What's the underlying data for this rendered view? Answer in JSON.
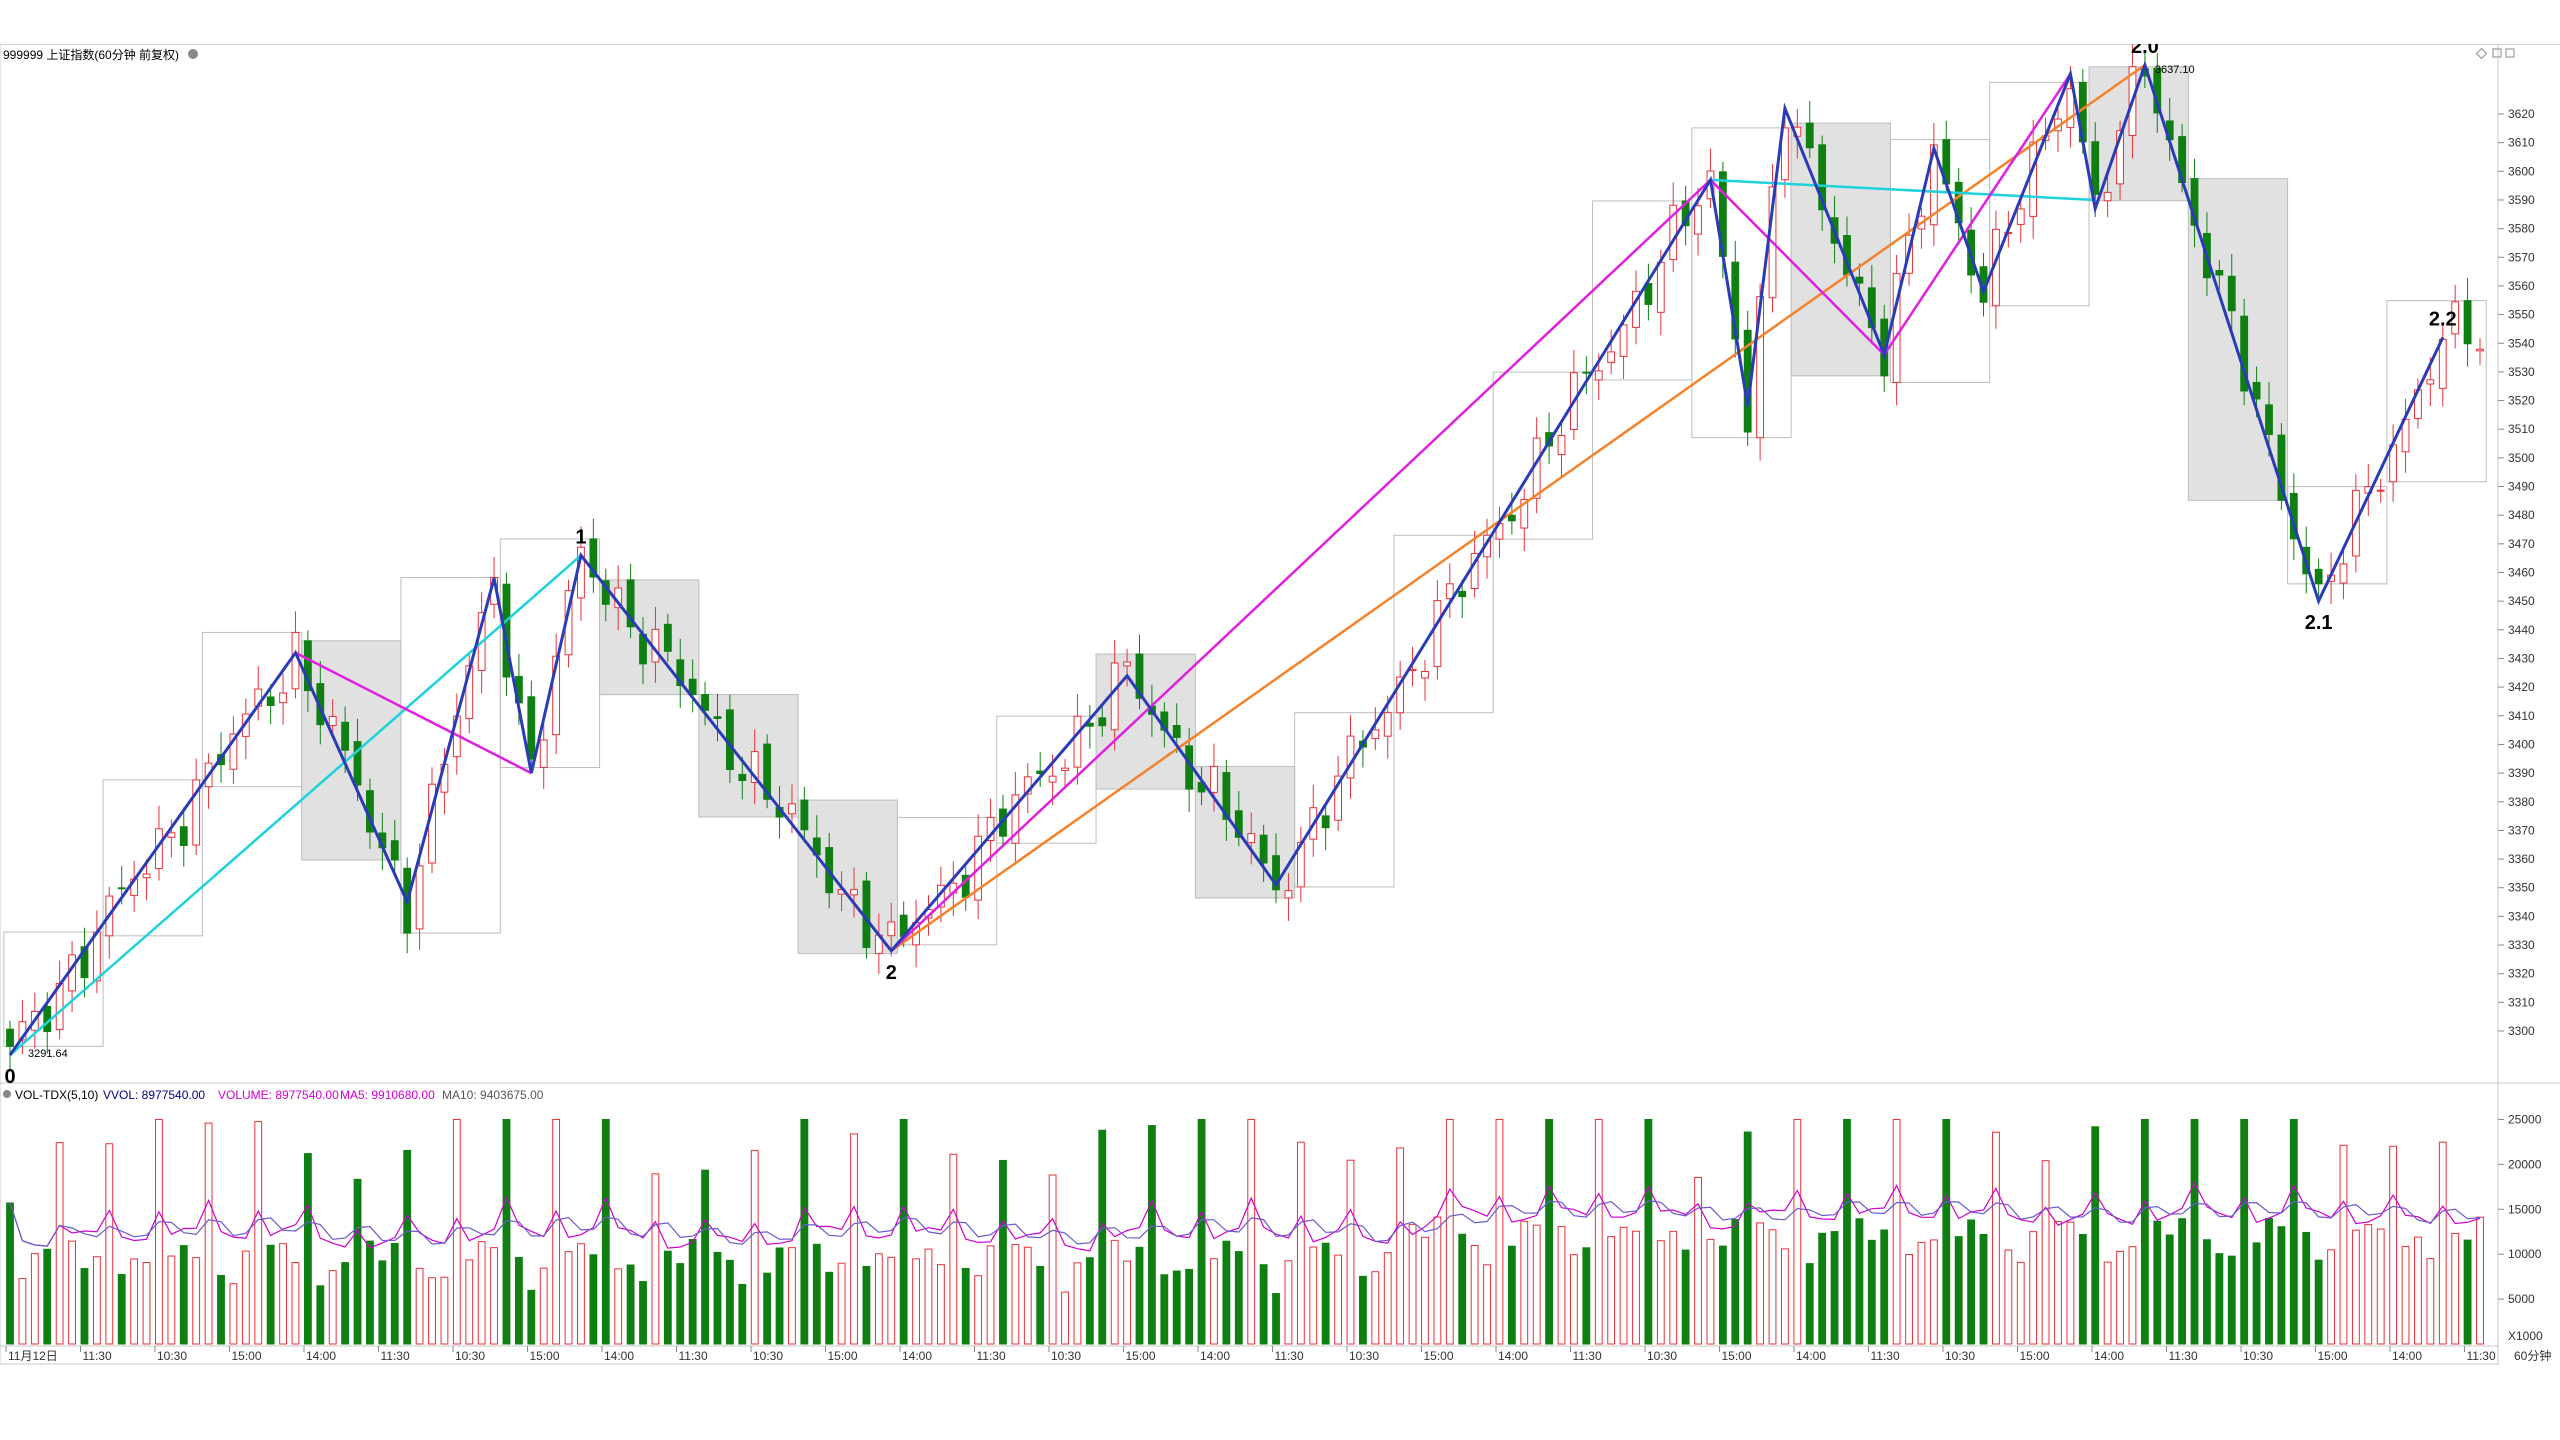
{
  "header": {
    "title": "999999 上证指数(60分钟 前复权)",
    "right_icons": [
      "diamond-icon",
      "restore-icon",
      "close-icon"
    ]
  },
  "volume_header": {
    "indicator": "VOL-TDX(5,10)",
    "vvol": "VVOL: 8977540.00",
    "volume": "VOLUME: 8977540.00",
    "ma5": "MA5: 9910680.00",
    "ma10": "MA10: 9403675.00"
  },
  "chart_data": [
    {
      "type": "candlestick",
      "title": "",
      "y_ticks": [
        3300,
        3310,
        3320,
        3330,
        3340,
        3350,
        3360,
        3370,
        3380,
        3390,
        3400,
        3410,
        3420,
        3430,
        3440,
        3450,
        3460,
        3470,
        3480,
        3490,
        3500,
        3510,
        3520,
        3530,
        3540,
        3550,
        3560,
        3570,
        3580,
        3590,
        3600,
        3610,
        3620
      ],
      "ylim": [
        3280,
        3645
      ],
      "bar_count": 200,
      "up_color": "#e8313a",
      "down_color": "#0f7f12",
      "low_annotation": "3291.64",
      "high_annotation": "3637.10",
      "wave_labels": [
        {
          "text": "0",
          "bar": 0,
          "price": 3291.64
        },
        {
          "text": "1",
          "bar": 46,
          "price": 3466
        },
        {
          "text": "2",
          "bar": 71,
          "price": 3328
        },
        {
          "text": "2.0",
          "bar": 172,
          "price": 3637.1
        },
        {
          "text": "2.1",
          "bar": 186,
          "price": 3450
        },
        {
          "text": "2.2",
          "bar": 196,
          "price": 3542
        }
      ],
      "zigzag_blue": [
        [
          0,
          3291.64
        ],
        [
          23,
          3432
        ],
        [
          32,
          3345
        ],
        [
          39,
          3458
        ],
        [
          42,
          3390
        ],
        [
          46,
          3466
        ],
        [
          71,
          3328
        ],
        [
          90,
          3424
        ],
        [
          102,
          3351
        ],
        [
          137,
          3597
        ],
        [
          140,
          3518
        ],
        [
          143,
          3622
        ],
        [
          151,
          3536
        ],
        [
          155,
          3608
        ],
        [
          159,
          3558
        ],
        [
          166,
          3634
        ],
        [
          168,
          3587
        ],
        [
          172,
          3637.1
        ],
        [
          186,
          3450
        ],
        [
          196,
          3542
        ]
      ],
      "magenta_lines": [
        [
          [
            23,
            3432
          ],
          [
            42,
            3390
          ]
        ],
        [
          [
            71,
            3328
          ],
          [
            137,
            3597
          ]
        ],
        [
          [
            137,
            3597
          ],
          [
            151,
            3536
          ]
        ],
        [
          [
            151,
            3536
          ],
          [
            166,
            3634
          ]
        ]
      ],
      "cyan_lines": [
        [
          [
            0,
            3291.64
          ],
          [
            46,
            3466
          ]
        ],
        [
          [
            137,
            3597
          ],
          [
            168,
            3590
          ]
        ]
      ],
      "orange_lines": [
        [
          [
            71,
            3328
          ],
          [
            172,
            3637.1
          ]
        ]
      ]
    },
    {
      "type": "bar",
      "title": "VOL-TDX(5,10)",
      "y_ticks": [
        5000,
        10000,
        15000,
        20000,
        25000
      ],
      "ylim": [
        0,
        26500
      ],
      "unit": "X1000",
      "series": [
        {
          "name": "VOLUME",
          "kind": "bars"
        },
        {
          "name": "MA5",
          "color": "#d000d0"
        },
        {
          "name": "MA10",
          "color": "#6a5acd"
        }
      ]
    }
  ],
  "x_axis": {
    "labels": [
      "11月12日",
      "11:30",
      "10:30",
      "15:00",
      "14:00",
      "11:30",
      "10:30",
      "15:00",
      "14:00",
      "11:30",
      "10:30",
      "15:00",
      "14:00",
      "11:30",
      "10:30",
      "15:00",
      "14:00",
      "11:30",
      "10:30",
      "15:00",
      "14:00",
      "11:30",
      "10:30",
      "15:00",
      "14:00",
      "11:30",
      "10:30",
      "15:00",
      "14:00",
      "11:30",
      "10:30",
      "15:00",
      "14:00",
      "11:30"
    ],
    "period": "60分钟"
  }
}
